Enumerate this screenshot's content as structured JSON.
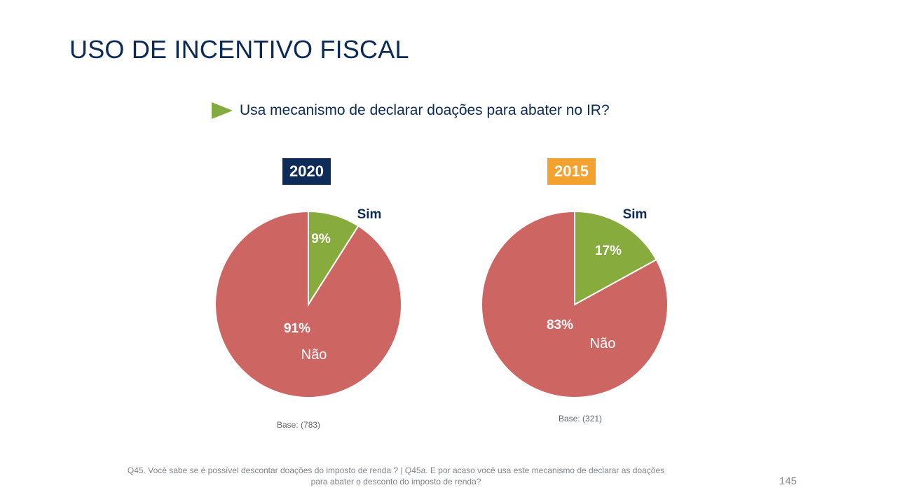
{
  "slide": {
    "title": "USO DE INCENTIVO FISCAL",
    "question": "Usa mecanismo de declarar doações para abater no IR?",
    "footnote_line1": "Q45. Você sabe se é possível descontar doações do imposto de renda ? | Q45a. E por acaso você usa este mecanismo de declarar as doações",
    "footnote_line2": "para abater o desconto do imposto de renda?",
    "page_number": "145",
    "icons": {
      "bullet": "triangle-arrow-right"
    },
    "colors": {
      "title": "#0b2a55",
      "sim": "#87ab3d",
      "nao": "#cd6562",
      "badge_2020": "#0e2c58",
      "badge_2015": "#f3a22f"
    }
  },
  "chart_data": [
    {
      "type": "pie",
      "title": "2020",
      "base_label": "Base: (783)",
      "slices": [
        {
          "label": "Sim",
          "value": 9,
          "value_label": "9%",
          "color": "#87ab3d"
        },
        {
          "label": "Não",
          "value": 91,
          "value_label": "91%",
          "color": "#cd6562"
        }
      ]
    },
    {
      "type": "pie",
      "title": "2015",
      "base_label": "Base: (321)",
      "slices": [
        {
          "label": "Sim",
          "value": 17,
          "value_label": "17%",
          "color": "#87ab3d"
        },
        {
          "label": "Não",
          "value": 83,
          "value_label": "83%",
          "color": "#cd6562"
        }
      ]
    }
  ]
}
